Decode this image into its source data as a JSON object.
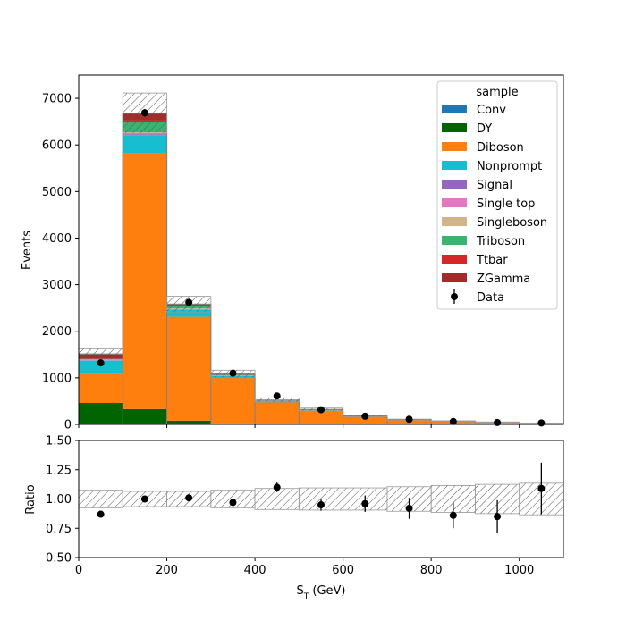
{
  "chart_data": [
    {
      "type": "bar",
      "subtype": "stacked-histogram",
      "xlabel": "S_T (GeV)",
      "ylabel": "Events",
      "xlim": [
        0,
        1100
      ],
      "ylim": [
        0,
        7500
      ],
      "bin_edges": [
        0,
        100,
        200,
        300,
        400,
        500,
        600,
        700,
        800,
        900,
        1000,
        1100
      ],
      "xticks": [
        0,
        200,
        400,
        600,
        800,
        1000
      ],
      "yticks": [
        0,
        1000,
        2000,
        3000,
        4000,
        5000,
        6000,
        7000
      ],
      "grid": false,
      "legend": {
        "title": "sample",
        "placement": "top-right"
      },
      "series": [
        {
          "name": "Conv",
          "color": "#1f77b4",
          "values": [
            0,
            0,
            0,
            0,
            0,
            0,
            0,
            0,
            0,
            0,
            0
          ]
        },
        {
          "name": "DY",
          "color": "#006400",
          "values": [
            460,
            330,
            80,
            20,
            5,
            2,
            1,
            1,
            0,
            0,
            0
          ]
        },
        {
          "name": "Diboson",
          "color": "#ff7f0e",
          "values": [
            620,
            5500,
            2230,
            980,
            480,
            300,
            170,
            95,
            65,
            45,
            25
          ]
        },
        {
          "name": "Nonprompt",
          "color": "#17becf",
          "values": [
            290,
            380,
            150,
            40,
            15,
            5,
            3,
            2,
            1,
            1,
            1
          ]
        },
        {
          "name": "Signal",
          "color": "#9467bd",
          "values": [
            5,
            20,
            10,
            5,
            3,
            2,
            1,
            1,
            1,
            0,
            0
          ]
        },
        {
          "name": "Single top",
          "color": "#e377c2",
          "values": [
            5,
            15,
            8,
            3,
            1,
            1,
            0,
            0,
            0,
            0,
            0
          ]
        },
        {
          "name": "Singleboson",
          "color": "#d2b48c",
          "values": [
            10,
            25,
            10,
            3,
            1,
            1,
            0,
            0,
            0,
            0,
            0
          ]
        },
        {
          "name": "Triboson",
          "color": "#3cb371",
          "values": [
            5,
            230,
            50,
            15,
            8,
            4,
            2,
            1,
            1,
            1,
            0
          ]
        },
        {
          "name": "Ttbar",
          "color": "#d62728",
          "values": [
            10,
            30,
            15,
            5,
            3,
            2,
            1,
            1,
            0,
            0,
            0
          ]
        },
        {
          "name": "ZGamma",
          "color": "#a52a2a",
          "values": [
            105,
            150,
            30,
            12,
            5,
            3,
            2,
            1,
            1,
            0,
            0
          ]
        }
      ],
      "uncertainty": {
        "relative": [
          0.075,
          0.065,
          0.065,
          0.075,
          0.09,
          0.095,
          0.095,
          0.105,
          0.115,
          0.125,
          0.135
        ],
        "hatch": true
      },
      "data": {
        "name": "Data",
        "x": [
          50,
          150,
          250,
          350,
          450,
          550,
          650,
          750,
          850,
          950,
          1050
        ],
        "y": [
          1320,
          6690,
          2620,
          1100,
          610,
          315,
          175,
          110,
          62,
          40,
          30
        ],
        "yerr": [
          36,
          82,
          51,
          33,
          25,
          18,
          13,
          10,
          8,
          6,
          5
        ]
      }
    },
    {
      "type": "scatter",
      "subtype": "ratio",
      "xlabel": "S_T (GeV)",
      "ylabel": "Ratio",
      "xlim": [
        0,
        1100
      ],
      "ylim": [
        0.5,
        1.5
      ],
      "xticks": [
        0,
        200,
        400,
        600,
        800,
        1000
      ],
      "yticks": [
        "0.50",
        "0.75",
        "1.00",
        "1.25",
        "1.50"
      ],
      "reference_line": 1.0,
      "points": {
        "x": [
          50,
          150,
          250,
          350,
          450,
          550,
          650,
          750,
          850,
          950,
          1050
        ],
        "y": [
          0.87,
          1.0,
          1.01,
          0.97,
          1.1,
          0.95,
          0.96,
          0.92,
          0.86,
          0.85,
          1.09
        ],
        "yerr": [
          0.02,
          0.015,
          0.02,
          0.03,
          0.04,
          0.05,
          0.07,
          0.09,
          0.11,
          0.14,
          0.22
        ]
      }
    }
  ]
}
